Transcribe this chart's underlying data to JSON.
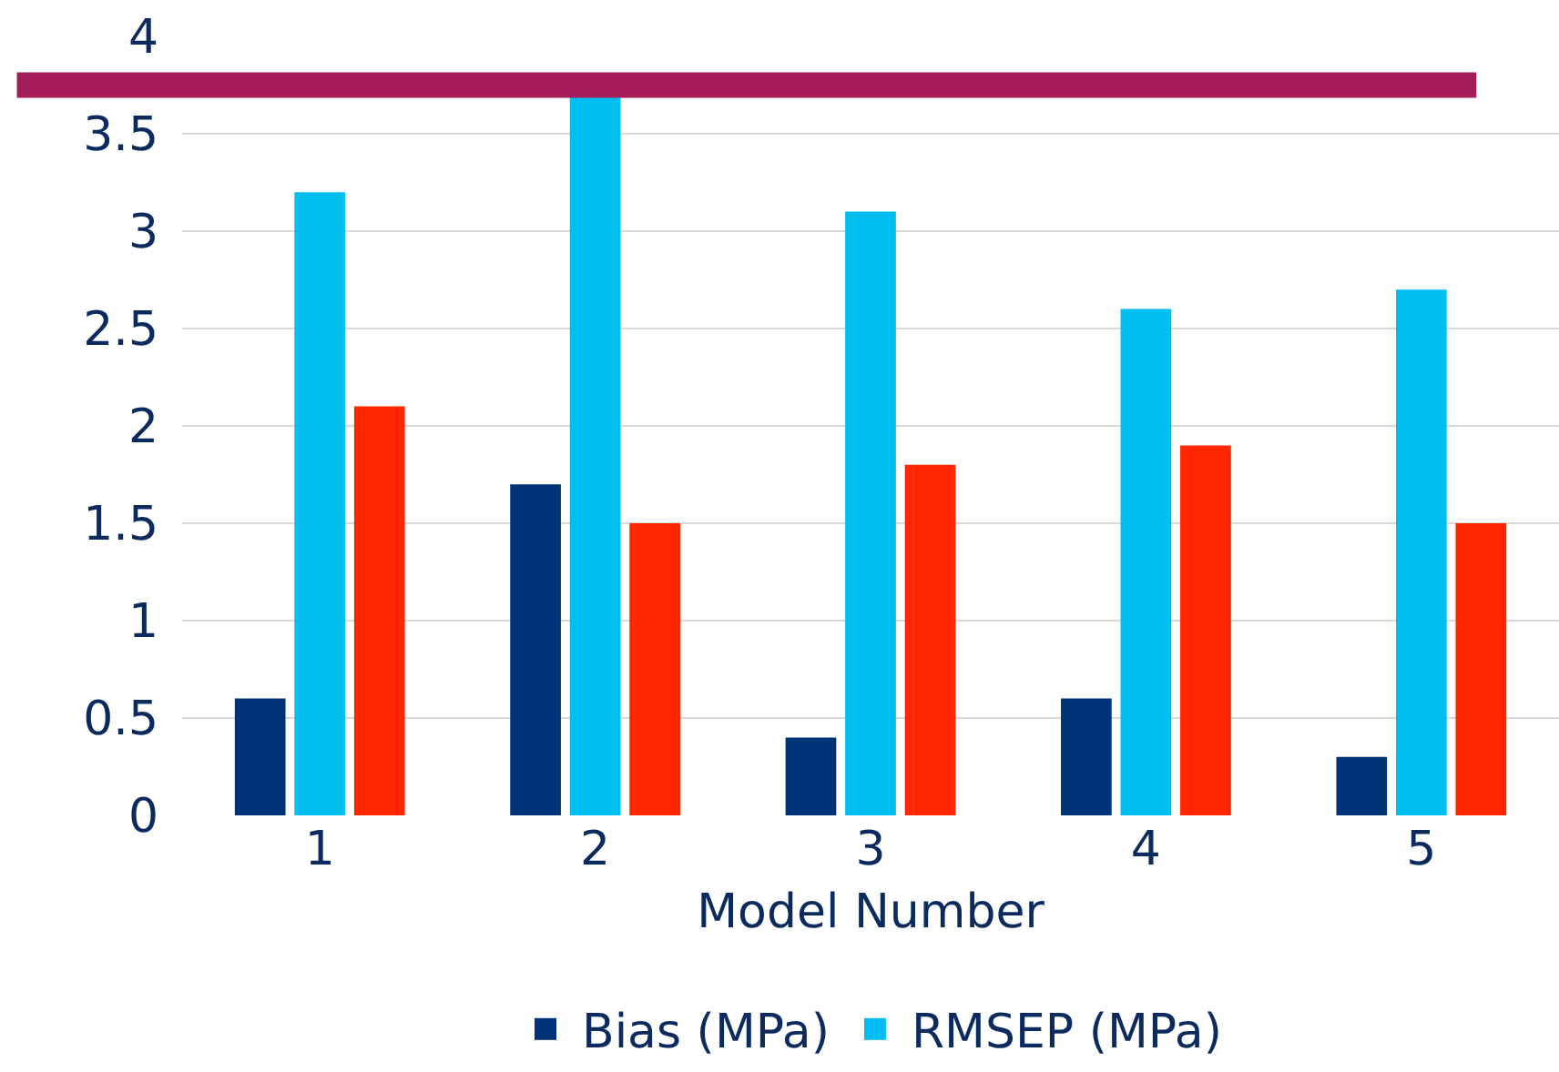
{
  "chart_data": {
    "type": "bar",
    "xlabel": "Model Number",
    "categories": [
      "1",
      "2",
      "3",
      "4",
      "5"
    ],
    "series": [
      {
        "name": "Bias (MPa)",
        "color": "#003278",
        "values": [
          0.6,
          1.7,
          0.4,
          0.6,
          0.3
        ]
      },
      {
        "name": "RMSEP (MPa)",
        "color": "#00bef2",
        "values": [
          3.2,
          3.7,
          3.1,
          2.6,
          2.7
        ]
      },
      {
        "color": "#ff2600",
        "values": [
          2.1,
          1.5,
          1.8,
          1.9,
          1.5
        ]
      }
    ],
    "ylim": [
      0,
      4
    ],
    "yticks": [
      0,
      0.5,
      1,
      1.5,
      2,
      2.5,
      3,
      3.5,
      4
    ],
    "grid": "y",
    "legend": "bottom",
    "ref_lines": [
      {
        "axis": "y",
        "value": 3.75,
        "color": "#a51c5a"
      }
    ]
  }
}
